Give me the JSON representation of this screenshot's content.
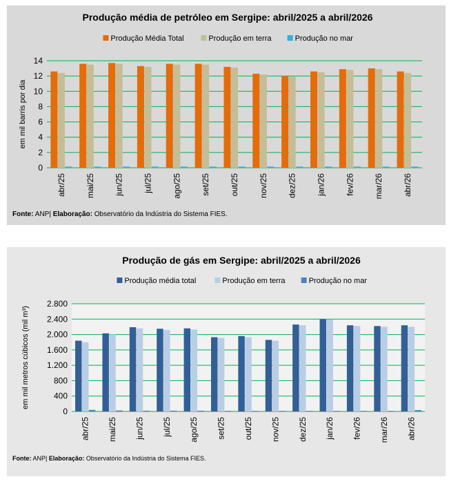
{
  "chart_data": [
    {
      "type": "bar",
      "title": "Produção média de petróleo em Sergipe: abril/2025 a abril/2026",
      "y_label": "em mil barris por dia",
      "categories": [
        "abr/25",
        "mai/25",
        "jun/25",
        "jul/25",
        "ago/25",
        "set/25",
        "out/25",
        "nov/25",
        "dez/25",
        "jan/26",
        "fev/26",
        "mar/26",
        "abr/26"
      ],
      "series": [
        {
          "name": "Produção Média Total",
          "color": "#e46c0a",
          "values": [
            12.6,
            13.6,
            13.7,
            13.3,
            13.6,
            13.6,
            13.2,
            12.3,
            12.0,
            12.6,
            12.9,
            13.0,
            12.6
          ]
        },
        {
          "name": "Produção em terra",
          "color": "#c4bd97",
          "values": [
            12.4,
            13.5,
            13.6,
            13.2,
            13.5,
            13.5,
            13.1,
            12.2,
            11.9,
            12.5,
            12.8,
            12.9,
            12.4
          ]
        },
        {
          "name": "Produção no mar",
          "color": "#31b0e0",
          "values": [
            0.15,
            0.15,
            0.15,
            0.15,
            0.15,
            0.15,
            0.15,
            0.15,
            0.15,
            0.15,
            0.15,
            0.15,
            0.15
          ]
        }
      ],
      "ylim": [
        0,
        14
      ],
      "yticks": [
        0,
        2,
        4,
        6,
        8,
        10,
        12,
        14
      ],
      "grid": true,
      "source_label": "Fonte:",
      "source": "ANP|",
      "credit_label": "Elaboração:",
      "credit": "Observatório da Indústria do Sistema FIES."
    },
    {
      "type": "bar",
      "title": "Produção de gás em Sergipe: abril/2025 a abril/2026",
      "y_label": "em mil metros cúbicos (mil m³)",
      "categories": [
        "abr/25",
        "mai/25",
        "jun/25",
        "jul/25",
        "ago/25",
        "set/25",
        "out/25",
        "nov/25",
        "dez/25",
        "jan/26",
        "fev/26",
        "mar/26",
        "abr/26"
      ],
      "series": [
        {
          "name": "Produção média total",
          "color": "#325f96",
          "values": [
            1840,
            2030,
            2190,
            2150,
            2160,
            1930,
            1960,
            1860,
            2260,
            2400,
            2240,
            2220,
            2240
          ]
        },
        {
          "name": "Produção em terra",
          "color": "#b9cde5",
          "values": [
            1800,
            2000,
            2160,
            2120,
            2130,
            1910,
            1930,
            1840,
            2240,
            2390,
            2220,
            2200,
            2200
          ]
        },
        {
          "name": "Produção no mar",
          "color": "#4f81bd",
          "values": [
            40,
            25,
            20,
            20,
            20,
            15,
            15,
            15,
            15,
            15,
            15,
            15,
            35
          ]
        }
      ],
      "ylim": [
        0,
        2800
      ],
      "yticks": [
        0,
        400,
        800,
        {
          "value": 1200,
          "label": "1.200"
        },
        {
          "value": 1600,
          "label": "1.600"
        },
        {
          "value": 2000,
          "label": "2.000"
        },
        {
          "value": 2400,
          "label": "2.400"
        },
        {
          "value": 2800,
          "label": "2.800"
        }
      ],
      "grid": true,
      "source_label": "Fonte:",
      "source": "ANP|",
      "credit_label": "Elaboração:",
      "credit": "Observatório da Indústria do Sistema FIES."
    }
  ]
}
